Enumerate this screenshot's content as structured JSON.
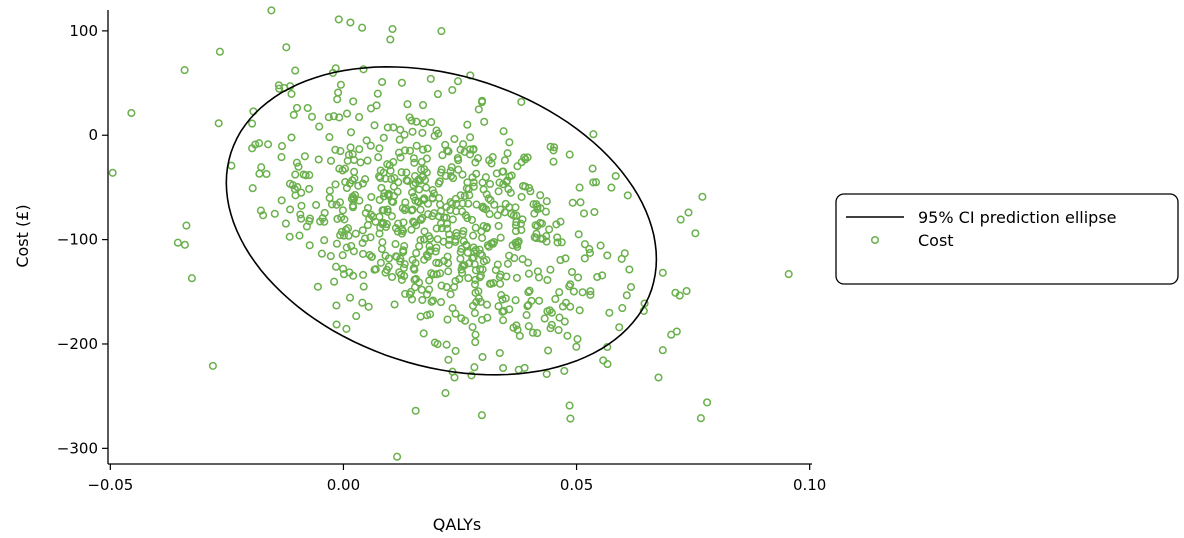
{
  "chart_data": {
    "type": "scatter",
    "xlabel": "QALYs",
    "ylabel": "Cost (£)",
    "xlim": [
      -0.0505,
      0.1005
    ],
    "ylim": [
      -315,
      120
    ],
    "xticks": [
      -0.05,
      0.0,
      0.05,
      0.1
    ],
    "xtick_labels": [
      "−0.05",
      "0.00",
      "0.05",
      "0.10"
    ],
    "yticks": [
      100,
      0,
      -100,
      -200,
      -300
    ],
    "ytick_labels": [
      "100",
      "0",
      "−100",
      "−200",
      "−300"
    ],
    "grid": false,
    "legend": {
      "placement": "right",
      "entries": [
        "95% CI prediction ellipse",
        "Cost"
      ]
    },
    "colors": {
      "points": "#6ab04c",
      "ellipse": "#000000"
    },
    "ellipse": {
      "name": "95% CI prediction ellipse",
      "center": [
        0.021,
        -82
      ],
      "x_range": [
        -0.026,
        0.067
      ],
      "y_range": [
        -232,
        67
      ]
    },
    "outliers": [
      {
        "x": -0.0495,
        "y": -36
      },
      {
        "x": 0.0955,
        "y": -133
      },
      {
        "x": 0.0115,
        "y": -308
      },
      {
        "x": -0.001,
        "y": 111
      },
      {
        "x": 0.0015,
        "y": 108
      },
      {
        "x": 0.004,
        "y": 103
      },
      {
        "x": -0.0265,
        "y": 80
      },
      {
        "x": -0.028,
        "y": -221
      },
      {
        "x": 0.0155,
        "y": -264
      },
      {
        "x": 0.077,
        "y": -59
      },
      {
        "x": 0.0755,
        "y": -94
      },
      {
        "x": 0.074,
        "y": -74
      },
      {
        "x": -0.0355,
        "y": -103
      },
      {
        "x": -0.034,
        "y": -105
      },
      {
        "x": 0.0485,
        "y": -259
      },
      {
        "x": -0.0325,
        "y": -137
      },
      {
        "x": 0.0685,
        "y": -206
      },
      {
        "x": 0.0715,
        "y": -188
      }
    ],
    "cloud": {
      "name": "Cost",
      "count": 760,
      "mean": [
        0.021,
        -82
      ],
      "sd": [
        0.019,
        62
      ],
      "correlation": -0.38,
      "seed": 1234
    }
  }
}
